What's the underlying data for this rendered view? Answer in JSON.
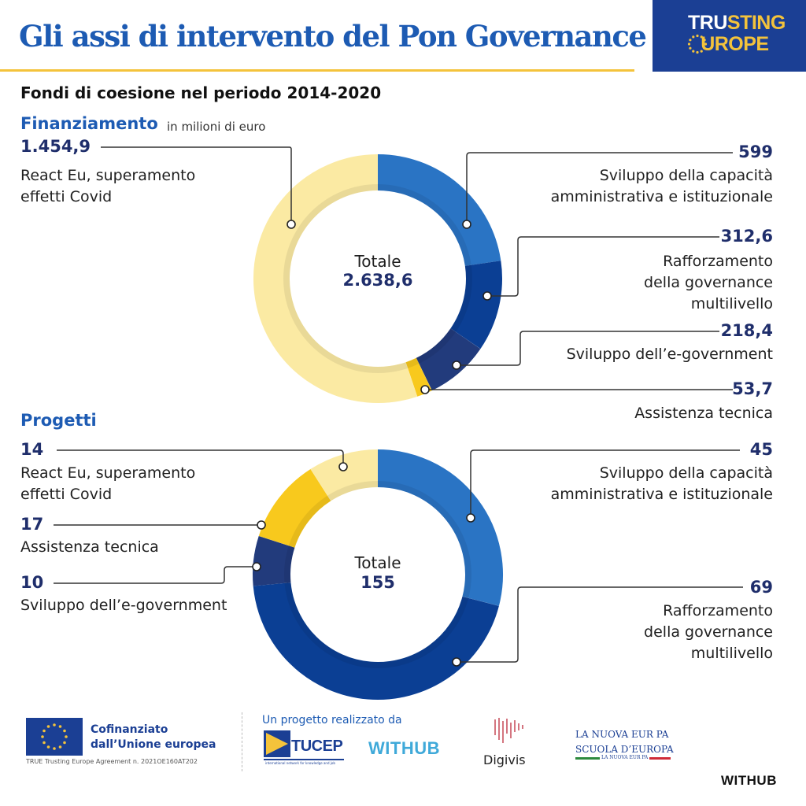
{
  "header": {
    "title": "Gli assi di intervento del Pon Governance",
    "brand_line1a": "TRU",
    "brand_line1b": "STING",
    "brand_line2a": "E",
    "brand_line2b": "UROPE"
  },
  "subtitle": "Fondi di coesione nel periodo 2014-2020",
  "colors": {
    "title_blue": "#1d5bb3",
    "navy": "#1b3f94",
    "yellow": "#f4c33b",
    "light_yellow": "#fbeaa3",
    "mid_blue": "#2a74c4",
    "deep_blue": "#0b3f94",
    "dark_navy": "#223b7c",
    "gold": "#f8c91d"
  },
  "chart_data": [
    {
      "type": "donut",
      "title": "Finanziamento",
      "unit": "in milioni di euro",
      "total_label": "Totale",
      "total": "2.638,6",
      "total_value": 2638.6,
      "segments": [
        {
          "label_lines": [
            "Sviluppo della capacità",
            "amministrativa e istituzionale"
          ],
          "value": 599,
          "value_text": "599",
          "color": "#2a74c4"
        },
        {
          "label_lines": [
            "Rafforzamento",
            "della governance",
            "multilivello"
          ],
          "value": 312.6,
          "value_text": "312,6",
          "color": "#0b3f94"
        },
        {
          "label_lines": [
            "Sviluppo dell’e-government"
          ],
          "value": 218.4,
          "value_text": "218,4",
          "color": "#223b7c"
        },
        {
          "label_lines": [
            "Assistenza tecnica"
          ],
          "value": 53.7,
          "value_text": "53,7",
          "color": "#f8c91d"
        },
        {
          "label_lines": [
            "React Eu, superamento",
            "effetti Covid"
          ],
          "value": 1454.9,
          "value_text": "1.454,9",
          "color": "#fbeaa3"
        }
      ]
    },
    {
      "type": "donut",
      "title": "Progetti",
      "total_label": "Totale",
      "total": "155",
      "total_value": 155,
      "segments": [
        {
          "label_lines": [
            "Sviluppo della capacità",
            "amministrativa e istituzionale"
          ],
          "value": 45,
          "value_text": "45",
          "color": "#2a74c4"
        },
        {
          "label_lines": [
            "Rafforzamento",
            "della governance",
            "multilivello"
          ],
          "value": 69,
          "value_text": "69",
          "color": "#0b3f94"
        },
        {
          "label_lines": [
            "Sviluppo dell’e-government"
          ],
          "value": 10,
          "value_text": "10",
          "color": "#223b7c"
        },
        {
          "label_lines": [
            "Assistenza tecnica"
          ],
          "value": 17,
          "value_text": "17",
          "color": "#f8c91d"
        },
        {
          "label_lines": [
            "React Eu, superamento",
            "effetti Covid"
          ],
          "value": 14,
          "value_text": "14",
          "color": "#fbeaa3"
        }
      ]
    }
  ],
  "footer": {
    "eu_line1": "Cofinanziato",
    "eu_line2": "dall’Unione europea",
    "agreement": "TRUE Trusting Europe Agreement n. 2021OE160AT202",
    "project_by": "Un progetto realizzato da",
    "tucep_name": "TUCEP",
    "tucep_tagline": "international network for knowledge and job",
    "withhub_logo": "WITHUB",
    "digivis": "Digivis",
    "lne_line1": "LA NUOVA EUR PA",
    "lne_line2": "SCUOLA D’EUROPA",
    "lne_line3": "LA NUOVA EUR PA",
    "withhub_corner": "WITHUB"
  }
}
